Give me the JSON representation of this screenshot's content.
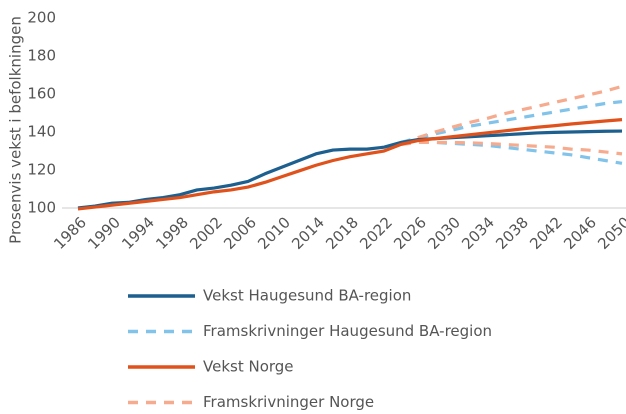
{
  "chart_data": {
    "type": "line",
    "y_label": "Prosenvis vekst i befolkningen",
    "x": [
      1986,
      1988,
      1990,
      1992,
      1994,
      1996,
      1998,
      2000,
      2002,
      2004,
      2006,
      2008,
      2010,
      2012,
      2014,
      2016,
      2018,
      2020,
      2022,
      2024,
      2026,
      2028,
      2030,
      2032,
      2034,
      2036,
      2038,
      2040,
      2042,
      2044,
      2046,
      2048,
      2050
    ],
    "xlim": [
      1986,
      2050
    ],
    "xticks": [
      1986,
      1990,
      1994,
      1998,
      2002,
      2006,
      2010,
      2014,
      2018,
      2022,
      2026,
      2030,
      2034,
      2038,
      2042,
      2046,
      2050
    ],
    "ylim": [
      100,
      200
    ],
    "yticks": [
      100,
      120,
      140,
      160,
      180,
      200
    ],
    "series": [
      {
        "name": "Vekst Haugesund BA-region",
        "color": "#1d5f8e",
        "dashed": false,
        "values": [
          100,
          101,
          102.5,
          103,
          104.5,
          105.5,
          107,
          109.5,
          110.5,
          112,
          114,
          118,
          121.5,
          125,
          128.5,
          130.5,
          131,
          131,
          132,
          134.5,
          136,
          136.5,
          137,
          137.5,
          138,
          138.5,
          139,
          139.5,
          139.8,
          140,
          140.2,
          140.4,
          140.5
        ]
      },
      {
        "name": "Framskrivninger Haugesund BA-region",
        "color": "#82c3ea",
        "dashed": true,
        "values": [
          null,
          null,
          null,
          null,
          null,
          null,
          null,
          null,
          null,
          null,
          null,
          null,
          null,
          null,
          null,
          null,
          null,
          null,
          null,
          134.5,
          137,
          139,
          141,
          143,
          144.5,
          146,
          147.5,
          149,
          150.5,
          152,
          153.5,
          155,
          156
        ],
        "values_low": [
          null,
          null,
          null,
          null,
          null,
          null,
          null,
          null,
          null,
          null,
          null,
          null,
          null,
          null,
          null,
          null,
          null,
          null,
          null,
          134.5,
          135,
          134.5,
          134,
          133.5,
          133,
          132,
          131,
          130,
          129,
          128,
          126.5,
          125,
          123.5
        ]
      },
      {
        "name": "Vekst Norge",
        "color": "#e0521c",
        "dashed": false,
        "values": [
          99.5,
          100.5,
          101.5,
          102.5,
          103.5,
          104.5,
          105.5,
          107,
          108.5,
          109.5,
          111,
          113.5,
          116.5,
          119.5,
          122.5,
          125,
          127,
          128.5,
          130,
          133.5,
          135.5,
          136.5,
          137.5,
          138.5,
          139.5,
          140.5,
          141.5,
          142.5,
          143.3,
          144.2,
          145,
          145.8,
          146.5
        ]
      },
      {
        "name": "Framskrivninger Norge",
        "color": "#f6ab8e",
        "dashed": true,
        "values": [
          null,
          null,
          null,
          null,
          null,
          null,
          null,
          null,
          null,
          null,
          null,
          null,
          null,
          null,
          null,
          null,
          null,
          null,
          null,
          133.5,
          137,
          140,
          142.5,
          145,
          147,
          149.5,
          151.5,
          153.5,
          155.5,
          157.5,
          159.5,
          161.5,
          164
        ],
        "values_low": [
          null,
          null,
          null,
          null,
          null,
          null,
          null,
          null,
          null,
          null,
          null,
          null,
          null,
          null,
          null,
          null,
          null,
          null,
          null,
          133.5,
          134.5,
          134.5,
          134.5,
          134.3,
          134,
          133.5,
          133,
          132.5,
          132,
          131,
          130.5,
          129.5,
          128.5
        ]
      }
    ]
  }
}
